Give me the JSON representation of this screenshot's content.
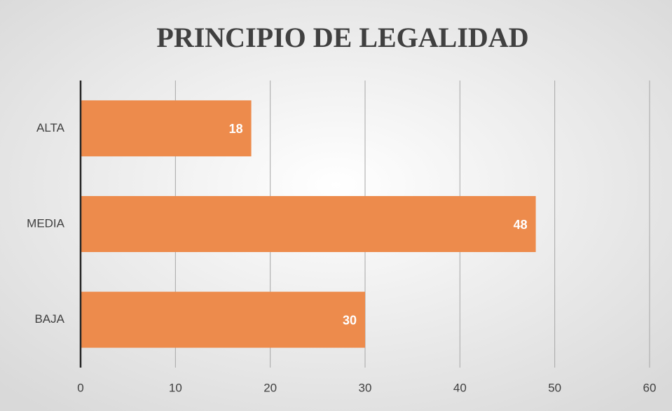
{
  "chart_data": {
    "type": "bar",
    "orientation": "horizontal",
    "title": "PRINCIPIO DE LEGALIDAD",
    "categories": [
      "ALTA",
      "MEDIA",
      "BAJA"
    ],
    "values": [
      18,
      48,
      30
    ],
    "color": "#ed8b4c",
    "xlim": [
      0,
      60
    ],
    "xticks": [
      0,
      10,
      20,
      30,
      40,
      50,
      60
    ],
    "grid": true
  }
}
